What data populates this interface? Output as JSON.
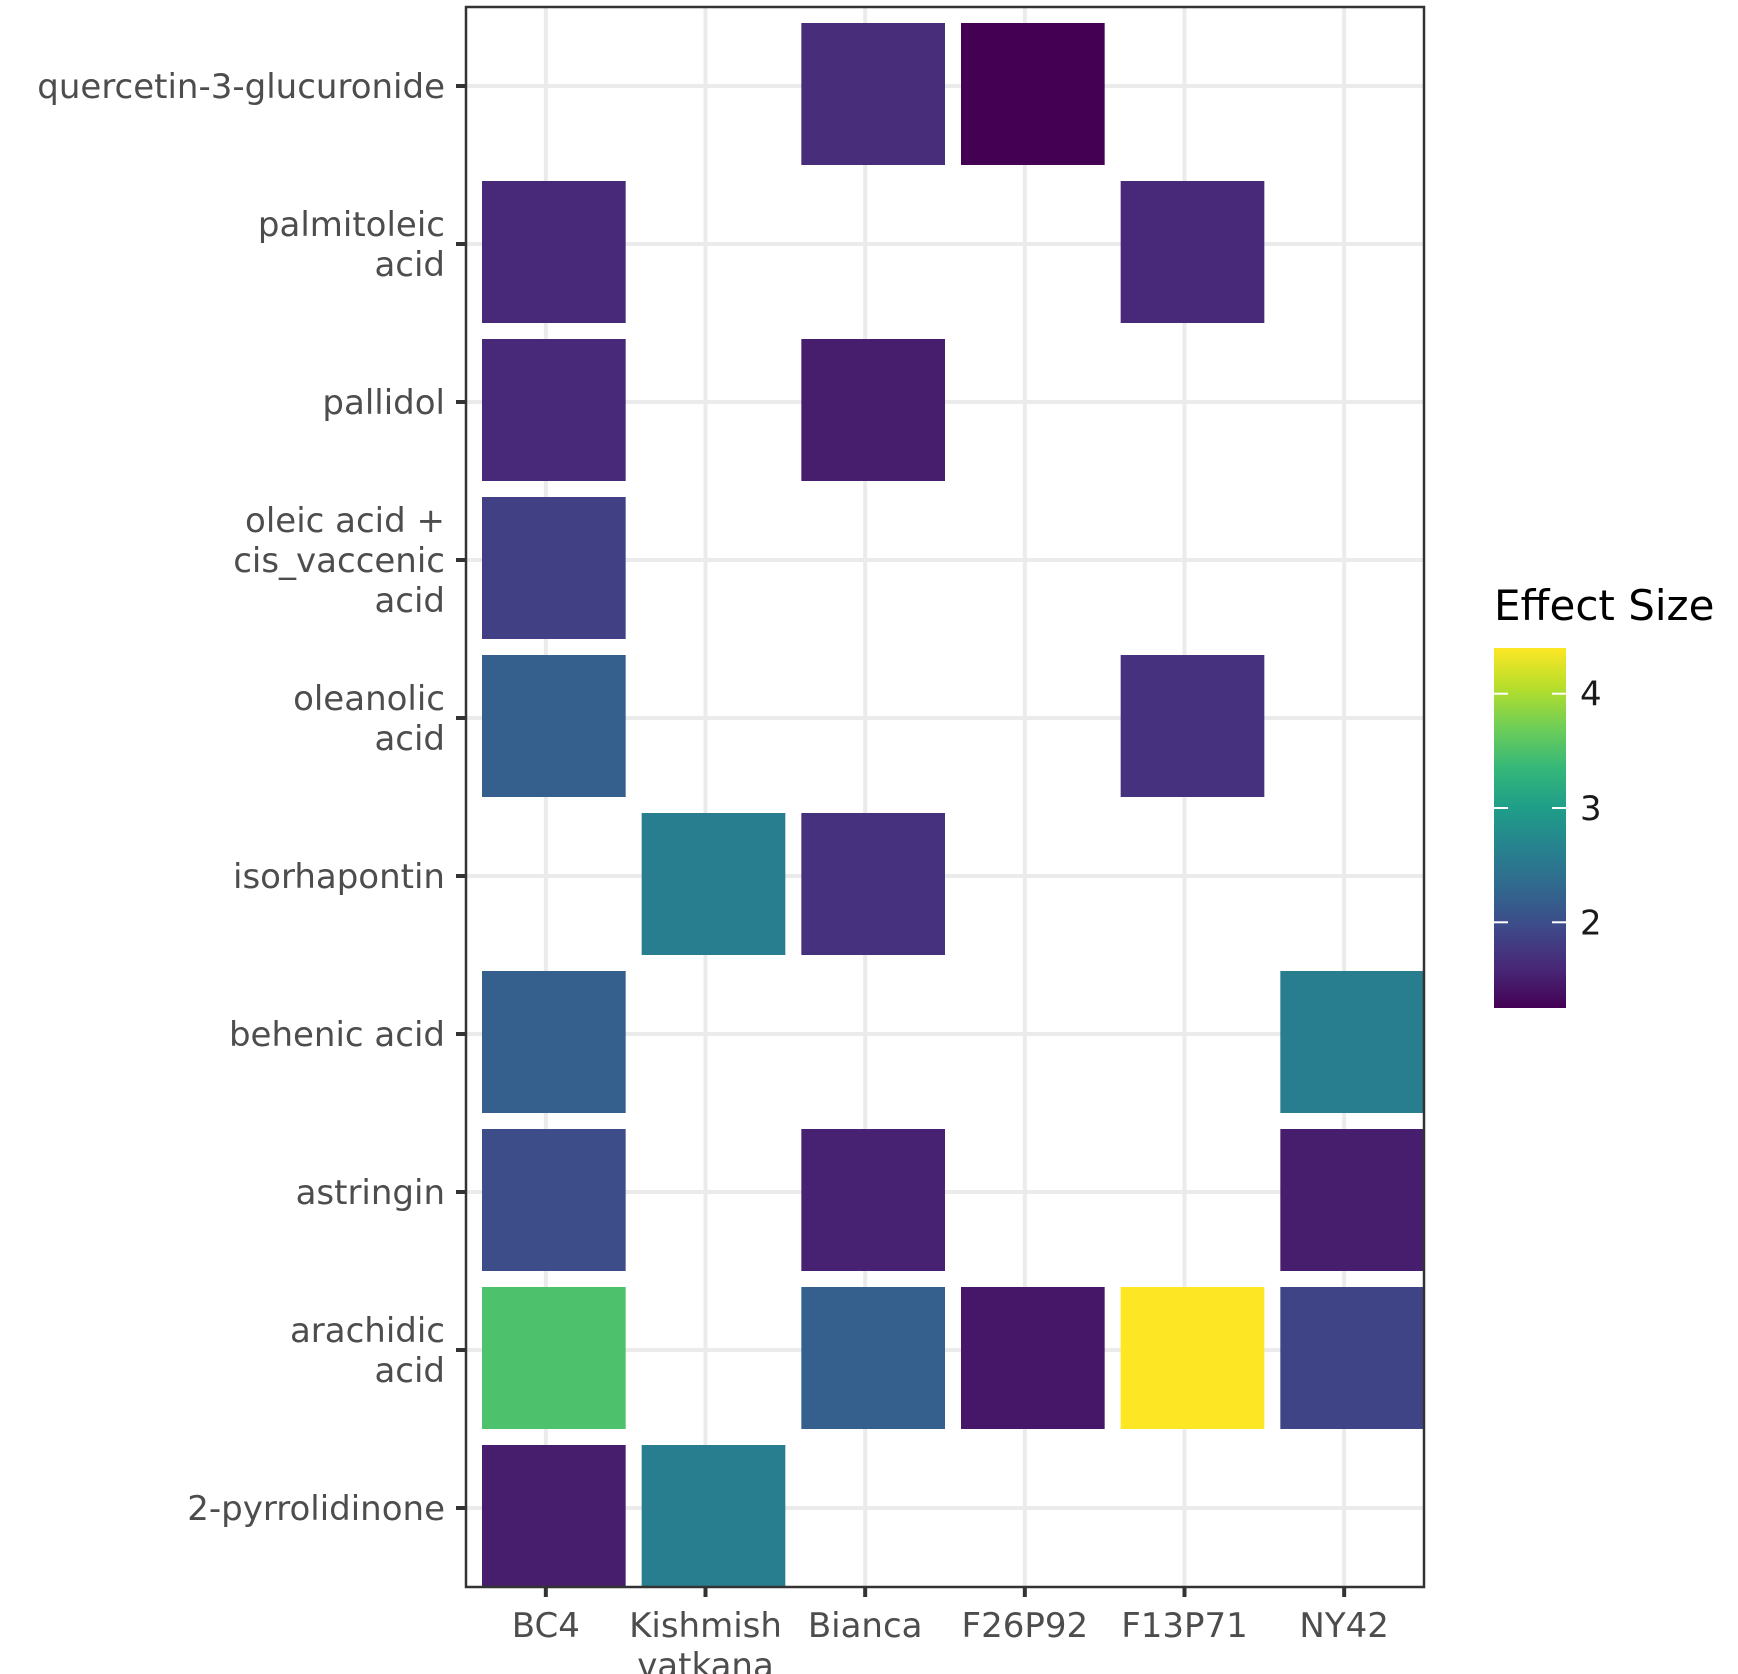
{
  "chart_data": {
    "type": "heatmap",
    "title": "",
    "xlabel": "",
    "ylabel": "",
    "x_categories": [
      [
        "BC4"
      ],
      [
        "Kishmish",
        "vatkana"
      ],
      [
        "Bianca"
      ],
      [
        "F26P92"
      ],
      [
        "F13P71"
      ],
      [
        "NY42"
      ]
    ],
    "y_categories": [
      [
        "quercetin-3-glucuronide"
      ],
      [
        "palmitoleic",
        "acid"
      ],
      [
        "pallidol"
      ],
      [
        "oleic acid +",
        "cis_vaccenic",
        "acid"
      ],
      [
        "oleanolic",
        "acid"
      ],
      [
        "isorhapontin"
      ],
      [
        "behenic acid"
      ],
      [
        "astringin"
      ],
      [
        "arachidic",
        "acid"
      ],
      [
        "2-pyrrolidinone"
      ]
    ],
    "cells": [
      {
        "row": 0,
        "col": 2,
        "value": 1.65
      },
      {
        "row": 0,
        "col": 3,
        "value": 1.25
      },
      {
        "row": 1,
        "col": 0,
        "value": 1.6
      },
      {
        "row": 1,
        "col": 4,
        "value": 1.6
      },
      {
        "row": 2,
        "col": 0,
        "value": 1.6
      },
      {
        "row": 2,
        "col": 2,
        "value": 1.5
      },
      {
        "row": 3,
        "col": 0,
        "value": 1.85
      },
      {
        "row": 4,
        "col": 0,
        "value": 2.2
      },
      {
        "row": 4,
        "col": 4,
        "value": 1.7
      },
      {
        "row": 5,
        "col": 1,
        "value": 2.6
      },
      {
        "row": 5,
        "col": 2,
        "value": 1.7
      },
      {
        "row": 6,
        "col": 0,
        "value": 2.2
      },
      {
        "row": 6,
        "col": 5,
        "value": 2.6
      },
      {
        "row": 7,
        "col": 0,
        "value": 2.0
      },
      {
        "row": 7,
        "col": 2,
        "value": 1.55
      },
      {
        "row": 7,
        "col": 5,
        "value": 1.5
      },
      {
        "row": 8,
        "col": 0,
        "value": 3.5
      },
      {
        "row": 8,
        "col": 2,
        "value": 2.2
      },
      {
        "row": 8,
        "col": 3,
        "value": 1.45
      },
      {
        "row": 8,
        "col": 4,
        "value": 4.4
      },
      {
        "row": 8,
        "col": 5,
        "value": 1.9
      },
      {
        "row": 9,
        "col": 0,
        "value": 1.5
      },
      {
        "row": 9,
        "col": 1,
        "value": 2.6
      }
    ],
    "colorbar": {
      "title": "Effect Size",
      "min": 1.25,
      "max": 4.4,
      "ticks": [
        "2",
        "3",
        "4"
      ],
      "tick_values": [
        2,
        3,
        4
      ],
      "palette": "viridis",
      "stops": [
        "#440154",
        "#482878",
        "#3e4989",
        "#31688e",
        "#26828e",
        "#1f9e89",
        "#35b779",
        "#6ece58",
        "#b5de2b",
        "#fde725"
      ]
    },
    "grid": true,
    "legend_position": "right"
  }
}
